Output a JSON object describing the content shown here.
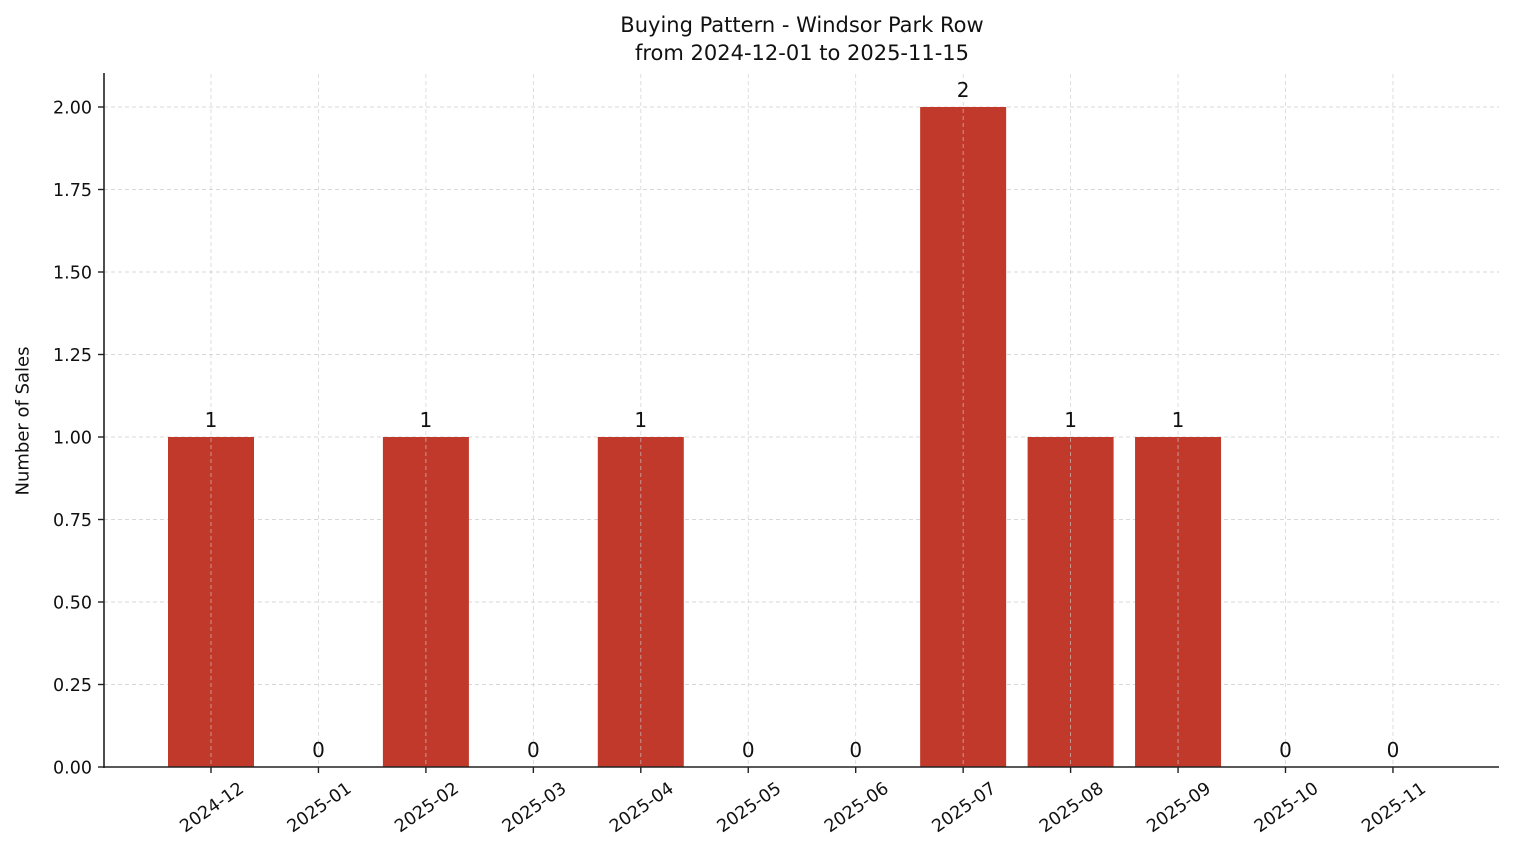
{
  "chart": {
    "title_line1": "Buying Pattern - Windsor Park Row",
    "title_line2": "from 2024-12-01 to 2025-11-15",
    "ylabel": "Number of Sales",
    "bar_color": "#c0392b"
  },
  "chart_data": {
    "type": "bar",
    "title": "Buying Pattern - Windsor Park Row\nfrom 2024-12-01 to 2025-11-15",
    "xlabel": "",
    "ylabel": "Number of Sales",
    "categories": [
      "2024-12",
      "2025-01",
      "2025-02",
      "2025-03",
      "2025-04",
      "2025-05",
      "2025-06",
      "2025-07",
      "2025-08",
      "2025-09",
      "2025-10",
      "2025-11"
    ],
    "values": [
      1,
      0,
      1,
      0,
      1,
      0,
      0,
      2,
      1,
      1,
      0,
      0
    ],
    "data_labels": [
      "1",
      "0",
      "1",
      "0",
      "1",
      "0",
      "0",
      "2",
      "1",
      "1",
      "0",
      "0"
    ],
    "ylim": [
      0,
      2.1
    ],
    "yticks": [
      0.0,
      0.25,
      0.5,
      0.75,
      1.0,
      1.25,
      1.5,
      1.75,
      2.0
    ],
    "ytick_labels": [
      "0.00",
      "0.25",
      "0.50",
      "0.75",
      "1.00",
      "1.25",
      "1.50",
      "1.75",
      "2.00"
    ],
    "grid": true,
    "legend": null,
    "bar_color": "#c0392b"
  }
}
